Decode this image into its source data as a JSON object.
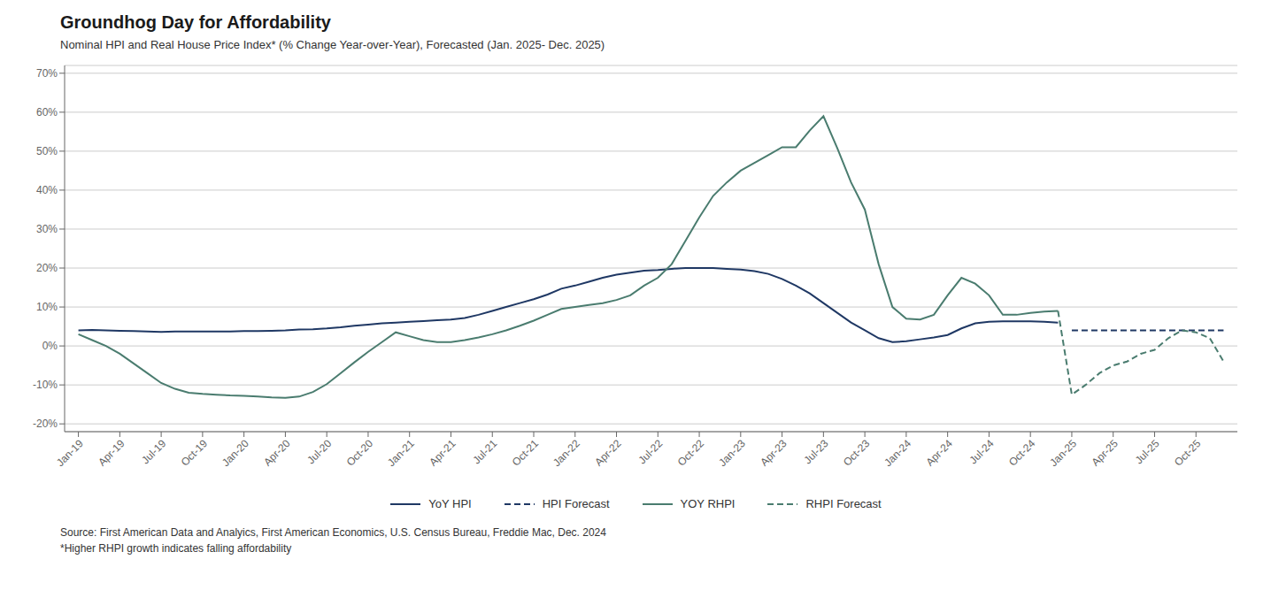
{
  "chart_data": {
    "type": "line",
    "title": "Groundhog Day for Affordability",
    "subtitle": "Nominal HPI and Real House Price Index* (% Change Year-over-Year), Forecasted (Jan. 2025- Dec. 2025)",
    "annotations": [
      "Source: First American Data and Analyics, First American Economics, U.S. Census Bureau, Freddie Mac, Dec. 2024",
      "*Higher RHPI growth indicates falling affordability"
    ],
    "xlim": [
      -1,
      84
    ],
    "xticks": [
      {
        "value": 0,
        "label": "Jan-19"
      },
      {
        "value": 3,
        "label": "Apr-19"
      },
      {
        "value": 6,
        "label": "Jul-19"
      },
      {
        "value": 9,
        "label": "Oct-19"
      },
      {
        "value": 12,
        "label": "Jan-20"
      },
      {
        "value": 15,
        "label": "Apr-20"
      },
      {
        "value": 18,
        "label": "Jul-20"
      },
      {
        "value": 21,
        "label": "Oct-20"
      },
      {
        "value": 24,
        "label": "Jan-21"
      },
      {
        "value": 27,
        "label": "Apr-21"
      },
      {
        "value": 30,
        "label": "Jul-21"
      },
      {
        "value": 33,
        "label": "Oct-21"
      },
      {
        "value": 36,
        "label": "Jan-22"
      },
      {
        "value": 39,
        "label": "Apr-22"
      },
      {
        "value": 42,
        "label": "Jul-22"
      },
      {
        "value": 45,
        "label": "Oct-22"
      },
      {
        "value": 48,
        "label": "Jan-23"
      },
      {
        "value": 51,
        "label": "Apr-23"
      },
      {
        "value": 54,
        "label": "Jul-23"
      },
      {
        "value": 57,
        "label": "Oct-23"
      },
      {
        "value": 60,
        "label": "Jan-24"
      },
      {
        "value": 63,
        "label": "Apr-24"
      },
      {
        "value": 66,
        "label": "Jul-24"
      },
      {
        "value": 69,
        "label": "Oct-24"
      },
      {
        "value": 72,
        "label": "Jan-25"
      },
      {
        "value": 75,
        "label": "Apr-25"
      },
      {
        "value": 78,
        "label": "Jul-25"
      },
      {
        "value": 81,
        "label": "Oct-25"
      }
    ],
    "ylim": [
      -0.22,
      0.72
    ],
    "yticks": [
      {
        "value": -0.2,
        "label": "-20%"
      },
      {
        "value": -0.1,
        "label": "-10%"
      },
      {
        "value": 0,
        "label": "0%"
      },
      {
        "value": 0.1,
        "label": "10%"
      },
      {
        "value": 0.2,
        "label": "20%"
      },
      {
        "value": 0.3,
        "label": "30%"
      },
      {
        "value": 0.4,
        "label": "40%"
      },
      {
        "value": 0.5,
        "label": "50%"
      },
      {
        "value": 0.6,
        "label": "60%"
      },
      {
        "value": 0.7,
        "label": "70%"
      }
    ],
    "grid": true,
    "series": [
      {
        "name": "YoY HPI",
        "color": "#1f3864",
        "line_style": "solid",
        "x": [
          0,
          1,
          2,
          3,
          4,
          5,
          6,
          7,
          8,
          9,
          10,
          11,
          12,
          13,
          14,
          15,
          16,
          17,
          18,
          19,
          20,
          21,
          22,
          23,
          24,
          25,
          26,
          27,
          28,
          29,
          30,
          31,
          32,
          33,
          34,
          35,
          36,
          37,
          38,
          39,
          40,
          41,
          42,
          43,
          44,
          45,
          46,
          47,
          48,
          49,
          50,
          51,
          52,
          53,
          54,
          55,
          56,
          57,
          58,
          59,
          60,
          61,
          62,
          63,
          64,
          65,
          66,
          67,
          68,
          69,
          70,
          71
        ],
        "values": [
          0.04,
          0.041,
          0.04,
          0.039,
          0.038,
          0.037,
          0.036,
          0.037,
          0.037,
          0.037,
          0.037,
          0.037,
          0.038,
          0.038,
          0.039,
          0.04,
          0.042,
          0.043,
          0.045,
          0.048,
          0.052,
          0.055,
          0.058,
          0.06,
          0.062,
          0.064,
          0.066,
          0.068,
          0.072,
          0.08,
          0.09,
          0.1,
          0.11,
          0.12,
          0.132,
          0.147,
          0.155,
          0.165,
          0.175,
          0.183,
          0.188,
          0.193,
          0.195,
          0.198,
          0.2,
          0.2,
          0.2,
          0.198,
          0.196,
          0.192,
          0.185,
          0.172,
          0.155,
          0.135,
          0.11,
          0.085,
          0.06,
          0.04,
          0.02,
          0.01,
          0.012,
          0.017,
          0.022,
          0.028,
          0.045,
          0.058,
          0.062,
          0.063,
          0.063,
          0.063,
          0.062,
          0.06
        ]
      },
      {
        "name": "HPI Forecast",
        "color": "#1f3864",
        "line_style": "dashed",
        "x": [
          72,
          73,
          74,
          75,
          76,
          77,
          78,
          79,
          80,
          81,
          82,
          83
        ],
        "values": [
          0.04,
          0.04,
          0.04,
          0.04,
          0.04,
          0.04,
          0.04,
          0.04,
          0.04,
          0.04,
          0.04,
          0.04
        ]
      },
      {
        "name": "YOY RHPI",
        "color": "#4a7c6f",
        "line_style": "solid",
        "x": [
          0,
          1,
          2,
          3,
          4,
          5,
          6,
          7,
          8,
          9,
          10,
          11,
          12,
          13,
          14,
          15,
          16,
          17,
          18,
          19,
          20,
          21,
          22,
          23,
          24,
          25,
          26,
          27,
          28,
          29,
          30,
          31,
          32,
          33,
          34,
          35,
          36,
          37,
          38,
          39,
          40,
          41,
          42,
          43,
          44,
          45,
          46,
          47,
          48,
          49,
          50,
          51,
          52,
          53,
          54,
          55,
          56,
          57,
          58,
          59,
          60,
          61,
          62,
          63,
          64,
          65,
          66,
          67,
          68,
          69,
          70,
          71
        ],
        "values": [
          0.03,
          0.015,
          0.0,
          -0.02,
          -0.045,
          -0.07,
          -0.095,
          -0.11,
          -0.12,
          -0.123,
          -0.125,
          -0.127,
          -0.128,
          -0.13,
          -0.132,
          -0.133,
          -0.13,
          -0.118,
          -0.098,
          -0.07,
          -0.042,
          -0.015,
          0.01,
          0.035,
          0.025,
          0.015,
          0.01,
          0.01,
          0.015,
          0.022,
          0.03,
          0.04,
          0.052,
          0.065,
          0.08,
          0.095,
          0.1,
          0.105,
          0.11,
          0.118,
          0.13,
          0.155,
          0.175,
          0.21,
          0.27,
          0.33,
          0.385,
          0.42,
          0.45,
          0.47,
          0.49,
          0.51,
          0.51,
          0.553,
          0.59,
          0.508,
          0.42,
          0.35,
          0.21,
          0.1,
          0.07,
          0.068,
          0.08,
          0.13,
          0.175,
          0.16,
          0.13,
          0.08,
          0.08,
          0.085,
          0.088,
          0.09
        ]
      },
      {
        "name": "RHPI Forecast",
        "color": "#4a7c6f",
        "line_style": "dashed",
        "x": [
          71,
          72,
          73,
          74,
          75,
          76,
          77,
          78,
          79,
          80,
          81,
          82,
          83
        ],
        "values": [
          0.09,
          -0.125,
          -0.1,
          -0.07,
          -0.05,
          -0.04,
          -0.02,
          -0.01,
          0.02,
          0.04,
          0.035,
          0.02,
          -0.04
        ]
      }
    ]
  }
}
